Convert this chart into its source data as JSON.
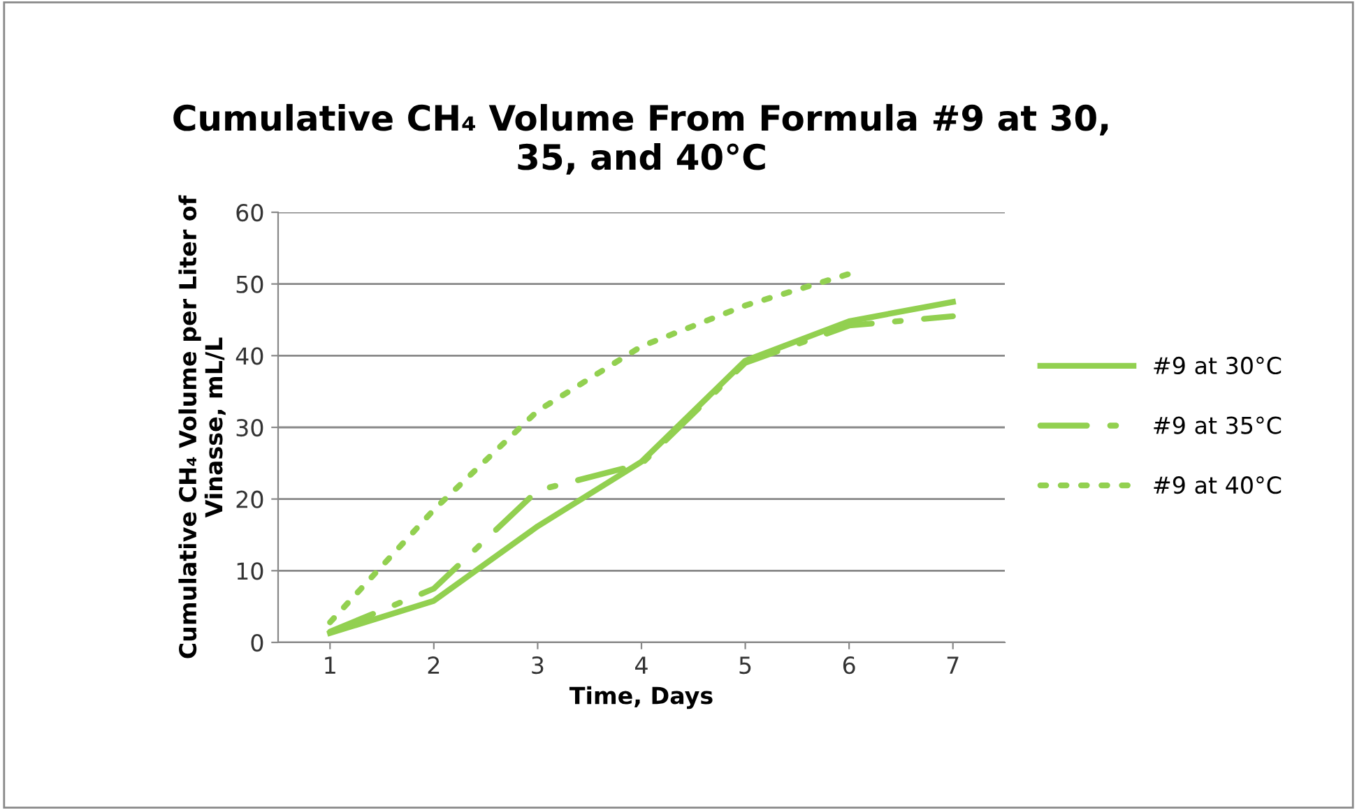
{
  "chart_data": {
    "type": "line",
    "title": "Cumulative CH₄ Volume From Formula #9 at 30,\n35, and 40°C",
    "xlabel": "Time, Days",
    "ylabel": "Cumulative CH₄ Volume per Liter of\nVinasse, mL/L",
    "categories": [
      "1",
      "2",
      "3",
      "4",
      "5",
      "6",
      "7"
    ],
    "series": [
      {
        "name": "#9 at 30°C",
        "color": "#92d050",
        "line_style": "solid",
        "values": [
          1.3,
          5.8,
          16.2,
          25.2,
          39.3,
          44.8,
          47.5
        ]
      },
      {
        "name": "#9 at 35°C",
        "color": "#92d050",
        "line_style": "dashdot",
        "values": [
          1.5,
          7.5,
          21.2,
          24.9,
          39.0,
          44.2,
          45.5
        ]
      },
      {
        "name": "#9 at 40°C",
        "color": "#92d050",
        "line_style": "dotted",
        "values": [
          2.8,
          18.5,
          32.3,
          41.3,
          47.0,
          51.4,
          null
        ]
      }
    ],
    "ylim": [
      0,
      60
    ],
    "yticks": [
      0,
      10,
      20,
      30,
      40,
      50,
      60
    ],
    "grid": "y",
    "legend": "right",
    "marker": "none"
  }
}
